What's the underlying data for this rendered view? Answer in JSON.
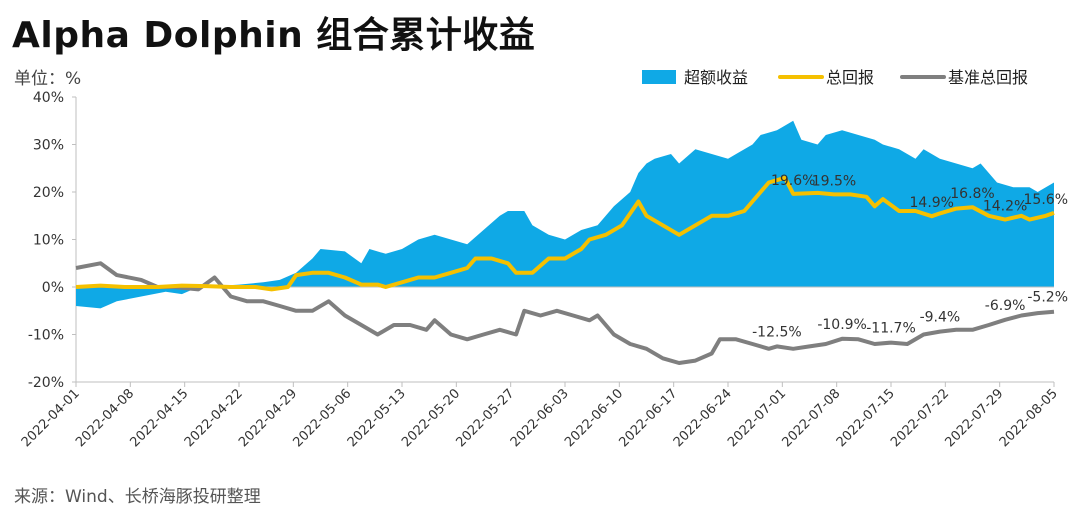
{
  "title": "Alpha Dolphin 组合累计收益",
  "unit": "单位：%",
  "source": "来源：Wind、长桥海豚投研整理",
  "colors": {
    "excess": "#0fa9e6",
    "total": "#f5c000",
    "benchmark": "#7f7f7f"
  },
  "chart_data": {
    "type": "line",
    "title": "Alpha Dolphin 组合累计收益",
    "ylabel": "%",
    "ylim": [
      -20,
      40
    ],
    "yticks": [
      "40%",
      "30%",
      "20%",
      "10%",
      "0%",
      "-10%",
      "-20%"
    ],
    "legend": "top-right",
    "x_tick_labels": [
      "2022-04-01",
      "2022-04-08",
      "2022-04-15",
      "2022-04-22",
      "2022-04-29",
      "2022-05-06",
      "2022-05-13",
      "2022-05-20",
      "2022-05-27",
      "2022-06-03",
      "2022-06-10",
      "2022-06-17",
      "2022-06-24",
      "2022-07-01",
      "2022-07-08",
      "2022-07-15",
      "2022-07-22",
      "2022-07-29",
      "2022-08-05"
    ],
    "series": [
      {
        "name": "超额收益",
        "type": "area",
        "values": [
          [
            0,
            -4
          ],
          [
            3,
            -4.5
          ],
          [
            5,
            -3
          ],
          [
            8,
            -2
          ],
          [
            11,
            -1
          ],
          [
            13,
            -1.5
          ],
          [
            15,
            0
          ],
          [
            18,
            0.3
          ],
          [
            20,
            0.5
          ],
          [
            23,
            1
          ],
          [
            25,
            1.5
          ],
          [
            27,
            3
          ],
          [
            29,
            6
          ],
          [
            30,
            8
          ],
          [
            33,
            7.5
          ],
          [
            35,
            5
          ],
          [
            36,
            8
          ],
          [
            38,
            7
          ],
          [
            40,
            8
          ],
          [
            42,
            10
          ],
          [
            44,
            11
          ],
          [
            46,
            10
          ],
          [
            48,
            9
          ],
          [
            50,
            12
          ],
          [
            52,
            15
          ],
          [
            53,
            16
          ],
          [
            55,
            16
          ],
          [
            56,
            13
          ],
          [
            58,
            11
          ],
          [
            60,
            10
          ],
          [
            62,
            12
          ],
          [
            64,
            13
          ],
          [
            66,
            17
          ],
          [
            68,
            20
          ],
          [
            69,
            24
          ],
          [
            70,
            26
          ],
          [
            71,
            27
          ],
          [
            73,
            28
          ],
          [
            74,
            26
          ],
          [
            76,
            29
          ],
          [
            78,
            28
          ],
          [
            80,
            27
          ],
          [
            81,
            28
          ],
          [
            83,
            30
          ],
          [
            84,
            32
          ],
          [
            86,
            33
          ],
          [
            88,
            35
          ],
          [
            89,
            31
          ],
          [
            91,
            30
          ],
          [
            92,
            32
          ],
          [
            94,
            33
          ],
          [
            96,
            32
          ],
          [
            98,
            31
          ],
          [
            99,
            30
          ],
          [
            101,
            29
          ],
          [
            103,
            27
          ],
          [
            104,
            29
          ],
          [
            106,
            27
          ],
          [
            108,
            26
          ],
          [
            110,
            25
          ],
          [
            111,
            26
          ],
          [
            113,
            22
          ],
          [
            115,
            21
          ],
          [
            117,
            21
          ],
          [
            118,
            20
          ],
          [
            120,
            22
          ]
        ]
      },
      {
        "name": "总回报",
        "type": "line",
        "values": [
          [
            0,
            0
          ],
          [
            3,
            0.3
          ],
          [
            6,
            0
          ],
          [
            10,
            0
          ],
          [
            13,
            0.3
          ],
          [
            16,
            0.2
          ],
          [
            19,
            0
          ],
          [
            22,
            0
          ],
          [
            24,
            -0.5
          ],
          [
            26,
            0
          ],
          [
            27,
            2.5
          ],
          [
            29,
            3
          ],
          [
            31,
            3
          ],
          [
            33,
            2
          ],
          [
            35,
            0.5
          ],
          [
            37,
            0.5
          ],
          [
            38,
            0
          ],
          [
            40,
            1
          ],
          [
            42,
            2
          ],
          [
            44,
            2
          ],
          [
            46,
            3
          ],
          [
            48,
            4
          ],
          [
            49,
            6
          ],
          [
            51,
            6
          ],
          [
            53,
            5
          ],
          [
            54,
            3
          ],
          [
            56,
            3
          ],
          [
            58,
            6
          ],
          [
            60,
            6
          ],
          [
            62,
            8
          ],
          [
            63,
            10
          ],
          [
            65,
            11
          ],
          [
            67,
            13
          ],
          [
            69,
            18
          ],
          [
            70,
            15
          ],
          [
            72,
            13
          ],
          [
            74,
            11
          ],
          [
            76,
            13
          ],
          [
            78,
            15
          ],
          [
            80,
            15
          ],
          [
            82,
            16
          ],
          [
            84,
            20
          ],
          [
            85,
            22
          ],
          [
            87,
            23
          ],
          [
            88,
            19.6
          ],
          [
            91,
            19.8
          ],
          [
            93,
            19.5
          ],
          [
            95,
            19.5
          ],
          [
            97,
            19
          ],
          [
            98,
            17
          ],
          [
            99,
            18.5
          ],
          [
            101,
            16
          ],
          [
            103,
            16
          ],
          [
            105,
            14.9
          ],
          [
            106,
            15.5
          ],
          [
            108,
            16.5
          ],
          [
            110,
            16.8
          ],
          [
            112,
            15
          ],
          [
            114,
            14.2
          ],
          [
            116,
            15
          ],
          [
            117,
            14.2
          ],
          [
            119,
            15
          ],
          [
            120,
            15.6
          ]
        ]
      },
      {
        "name": "基准总回报",
        "type": "line",
        "values": [
          [
            0,
            4
          ],
          [
            3,
            5
          ],
          [
            5,
            2.5
          ],
          [
            8,
            1.5
          ],
          [
            10,
            0
          ],
          [
            12,
            0
          ],
          [
            15,
            -0.5
          ],
          [
            17,
            2
          ],
          [
            19,
            -2
          ],
          [
            21,
            -3
          ],
          [
            23,
            -3
          ],
          [
            25,
            -4
          ],
          [
            27,
            -5
          ],
          [
            29,
            -5
          ],
          [
            31,
            -3
          ],
          [
            33,
            -6
          ],
          [
            35,
            -8
          ],
          [
            37,
            -10
          ],
          [
            39,
            -8
          ],
          [
            41,
            -8
          ],
          [
            43,
            -9
          ],
          [
            44,
            -7
          ],
          [
            46,
            -10
          ],
          [
            48,
            -11
          ],
          [
            50,
            -10
          ],
          [
            52,
            -9
          ],
          [
            54,
            -10
          ],
          [
            55,
            -5
          ],
          [
            57,
            -6
          ],
          [
            59,
            -5
          ],
          [
            61,
            -6
          ],
          [
            63,
            -7
          ],
          [
            64,
            -6
          ],
          [
            66,
            -10
          ],
          [
            68,
            -12
          ],
          [
            70,
            -13
          ],
          [
            72,
            -15
          ],
          [
            74,
            -16
          ],
          [
            76,
            -15.5
          ],
          [
            78,
            -14
          ],
          [
            79,
            -11
          ],
          [
            81,
            -11
          ],
          [
            83,
            -12
          ],
          [
            85,
            -13
          ],
          [
            86,
            -12.5
          ],
          [
            88,
            -13
          ],
          [
            90,
            -12.5
          ],
          [
            92,
            -12
          ],
          [
            94,
            -10.9
          ],
          [
            96,
            -11
          ],
          [
            98,
            -12
          ],
          [
            100,
            -11.7
          ],
          [
            102,
            -12
          ],
          [
            104,
            -10
          ],
          [
            106,
            -9.4
          ],
          [
            108,
            -9
          ],
          [
            110,
            -9
          ],
          [
            112,
            -8
          ],
          [
            114,
            -6.9
          ],
          [
            116,
            -6
          ],
          [
            118,
            -5.5
          ],
          [
            120,
            -5.2
          ]
        ]
      }
    ],
    "annotations": [
      {
        "text": "19.6%",
        "x": 88,
        "y": 19.6
      },
      {
        "text": "19.5%",
        "x": 93,
        "y": 19.5
      },
      {
        "text": "14.9%",
        "x": 105,
        "y": 14.9
      },
      {
        "text": "16.8%",
        "x": 110,
        "y": 16.8
      },
      {
        "text": "14.2%",
        "x": 114,
        "y": 14.2
      },
      {
        "text": "15.6%",
        "x": 120,
        "y": 15.6
      },
      {
        "text": "-12.5%",
        "x": 86,
        "y": -12.5
      },
      {
        "text": "-10.9%",
        "x": 94,
        "y": -10.9
      },
      {
        "text": "-11.7%",
        "x": 100,
        "y": -11.7
      },
      {
        "text": "-9.4%",
        "x": 106,
        "y": -9.4
      },
      {
        "text": "-6.9%",
        "x": 114,
        "y": -6.9
      },
      {
        "text": "-5.2%",
        "x": 120,
        "y": -5.2
      }
    ]
  }
}
